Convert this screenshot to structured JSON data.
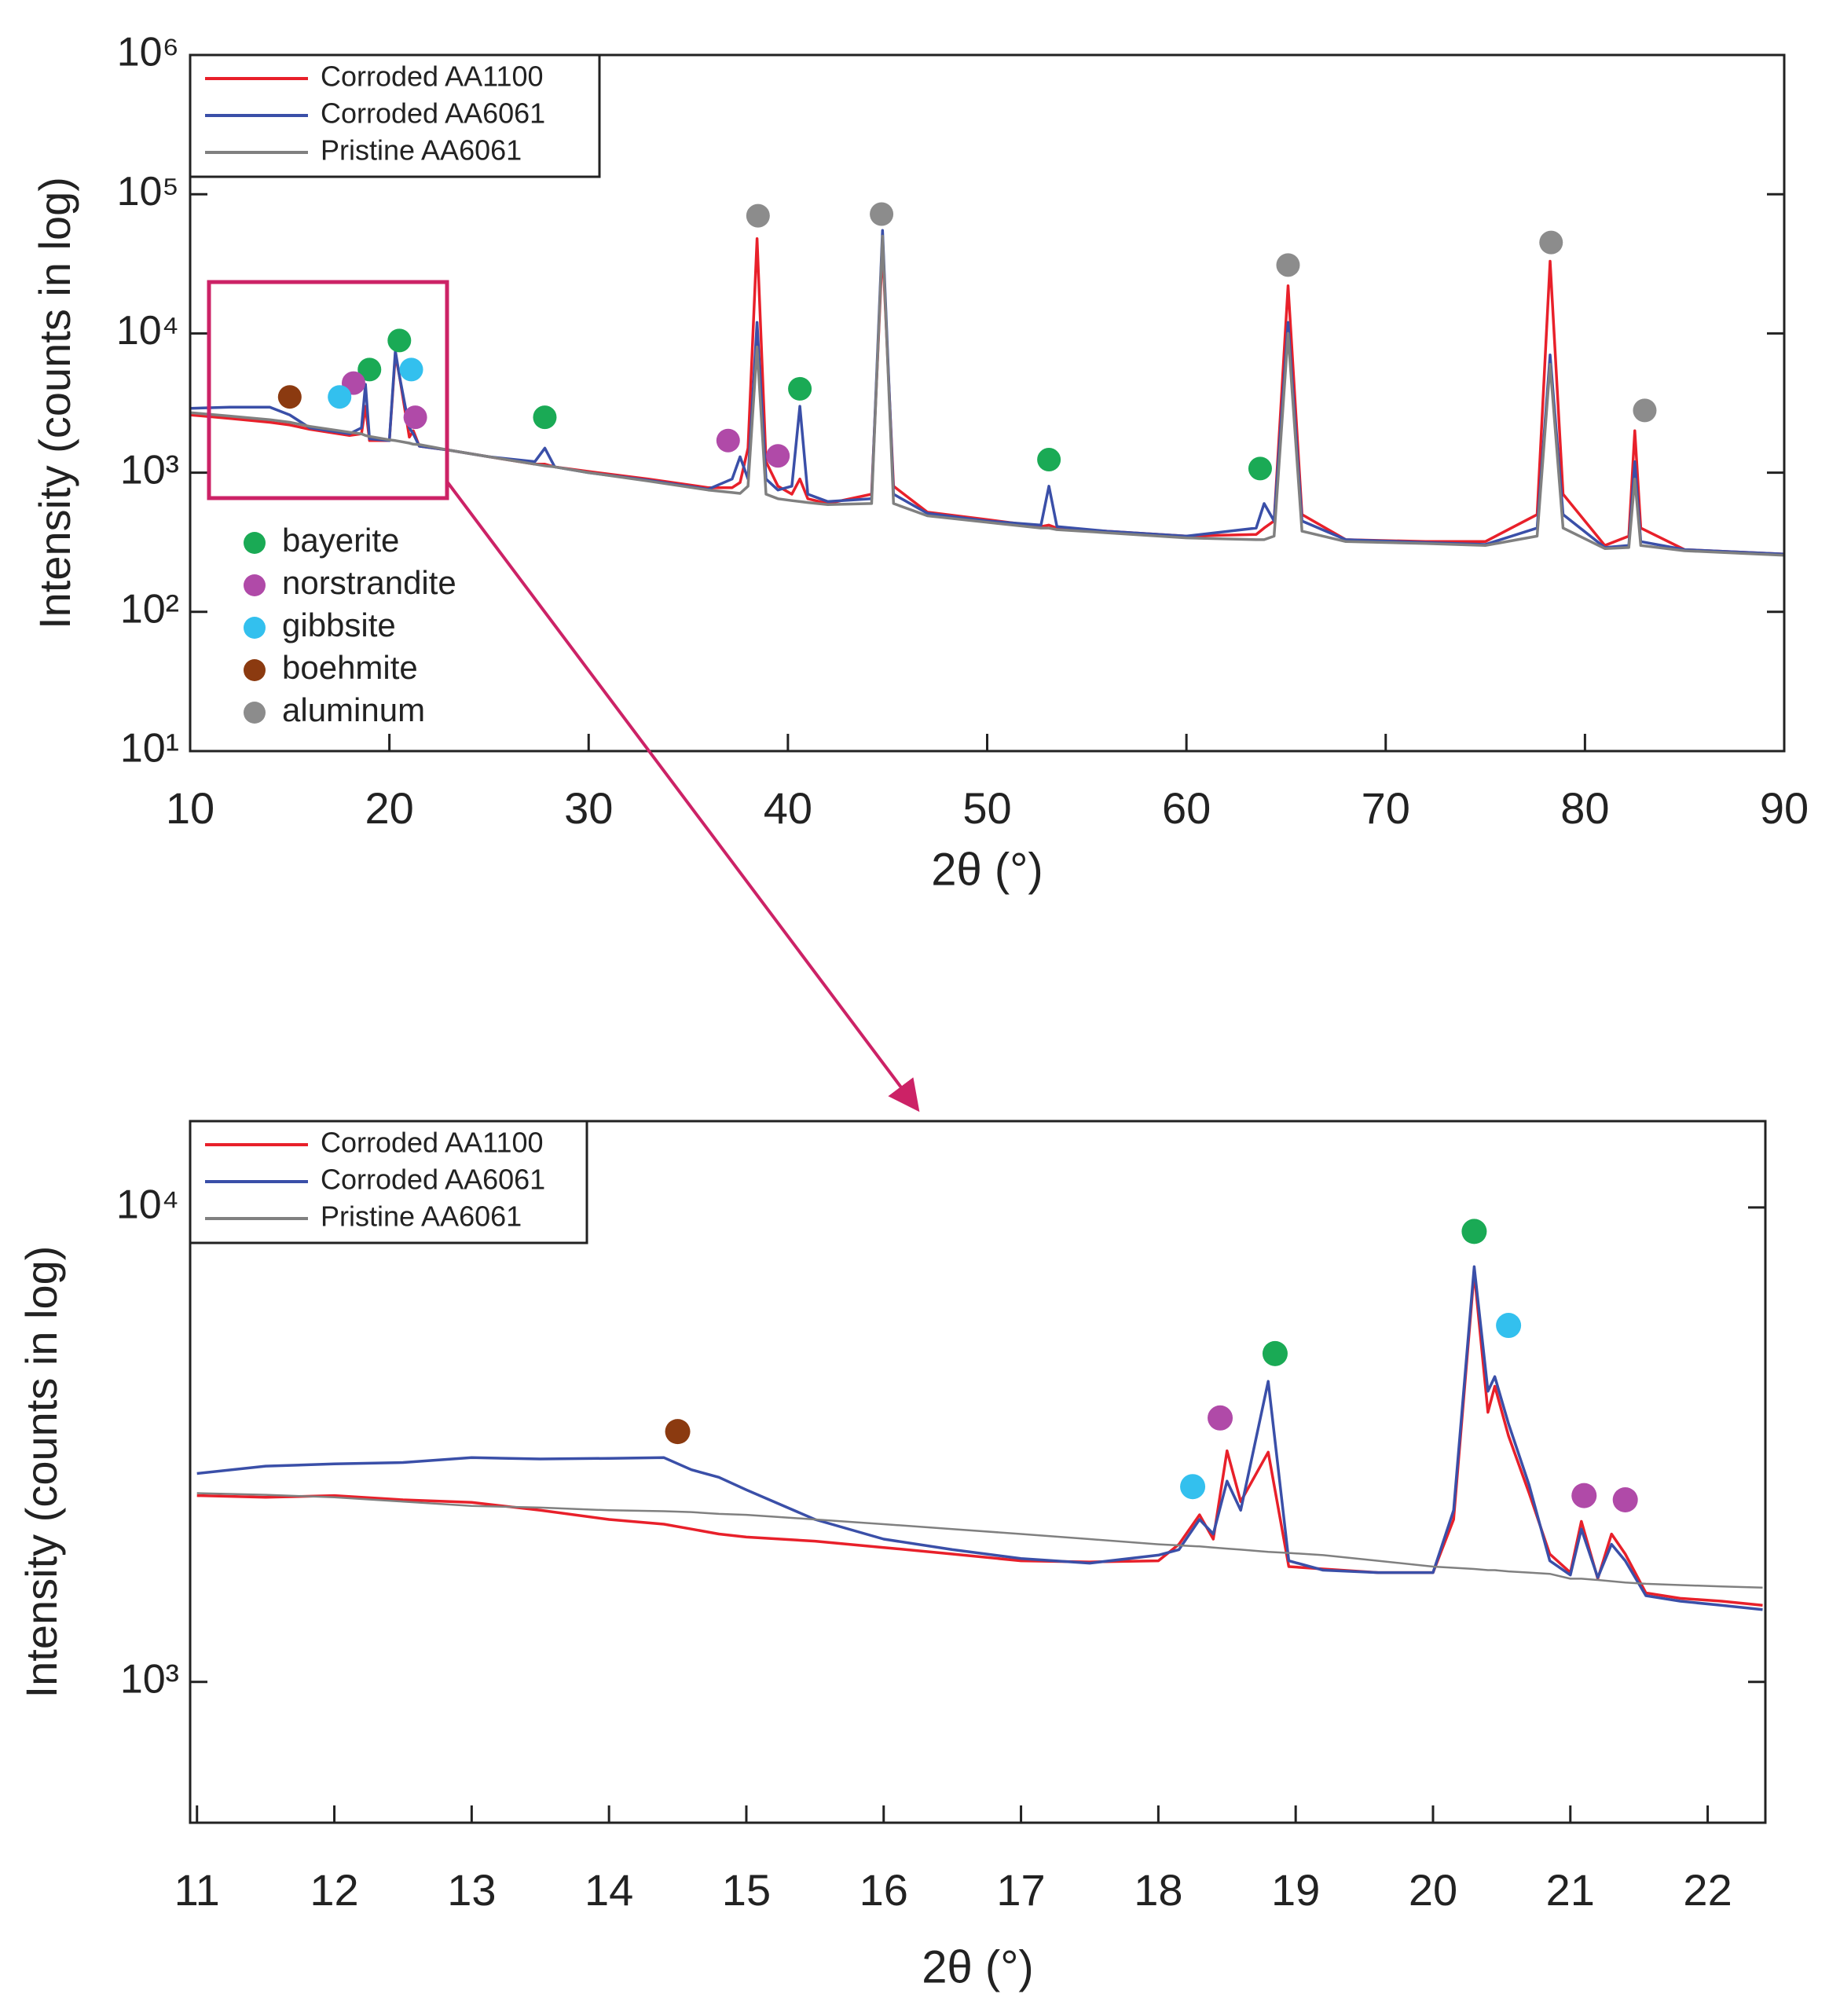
{
  "chart_data": [
    {
      "type": "line",
      "xlabel": "2θ (°)",
      "ylabel": "Intensity (counts in log)",
      "xlim": [
        10,
        90
      ],
      "xticks": [
        10,
        20,
        30,
        40,
        50,
        60,
        70,
        80,
        90
      ],
      "ylim": [
        10,
        1000000
      ],
      "log_y": true,
      "yticks": [
        {
          "value": 10,
          "label": "10¹"
        },
        {
          "value": 100,
          "label": "10²"
        },
        {
          "value": 1000,
          "label": "10³"
        },
        {
          "value": 10000,
          "label": "10⁴"
        },
        {
          "value": 100000,
          "label": "10⁵"
        },
        {
          "value": 1000000,
          "label": "10⁶"
        }
      ],
      "legend": "upper left",
      "x": [
        10,
        12,
        14,
        15,
        16,
        18,
        18.6,
        18.8,
        19,
        20,
        20.3,
        20.5,
        21,
        21.2,
        21.5,
        23,
        25,
        27.3,
        27.8,
        28.3,
        30,
        33,
        36,
        37.2,
        37.6,
        38.0,
        38.45,
        38.9,
        39.5,
        40.2,
        40.6,
        41.0,
        42,
        44.2,
        44.75,
        45.3,
        47,
        50,
        52.7,
        53.1,
        53.5,
        56,
        60,
        63.5,
        63.9,
        64.4,
        65.1,
        65.8,
        68,
        72,
        75,
        77.6,
        78.25,
        78.9,
        81,
        82.2,
        82.5,
        82.8,
        85,
        90
      ],
      "series": [
        {
          "name": "Corroded AA1100",
          "color": "#e8202a",
          "values": [
            2600,
            2450,
            2300,
            2200,
            2050,
            1850,
            1900,
            3000,
            1700,
            1700,
            7000,
            5000,
            1800,
            2000,
            1550,
            1450,
            1300,
            1150,
            1150,
            1100,
            1020,
            900,
            780,
            780,
            850,
            1500,
            48000,
            1200,
            800,
            700,
            900,
            650,
            600,
            700,
            42000,
            800,
            520,
            460,
            410,
            420,
            400,
            380,
            350,
            360,
            400,
            450,
            22000,
            500,
            330,
            320,
            320,
            500,
            33000,
            700,
            300,
            350,
            2000,
            400,
            280,
            260
          ]
        },
        {
          "name": "Corroded AA6061",
          "color": "#3a4fa8",
          "values": [
            2900,
            2950,
            2950,
            2600,
            2100,
            1900,
            2100,
            4300,
            1750,
            1700,
            7500,
            5000,
            2100,
            1900,
            1550,
            1450,
            1300,
            1200,
            1500,
            1100,
            1000,
            880,
            760,
            900,
            1300,
            900,
            12000,
            900,
            750,
            800,
            3000,
            700,
            620,
            650,
            55000,
            700,
            510,
            450,
            420,
            800,
            410,
            380,
            350,
            400,
            600,
            450,
            12000,
            450,
            330,
            315,
            305,
            400,
            7000,
            500,
            290,
            300,
            1200,
            320,
            280,
            260
          ]
        },
        {
          "name": "Pristine AA6061",
          "color": "#808080",
          "values": [
            2700,
            2550,
            2400,
            2300,
            2150,
            1950,
            1900,
            1850,
            1820,
            1720,
            1700,
            1680,
            1630,
            1600,
            1590,
            1450,
            1300,
            1150,
            1120,
            1100,
            1000,
            870,
            750,
            720,
            710,
            800,
            8000,
            700,
            650,
            630,
            620,
            610,
            590,
            600,
            50000,
            600,
            490,
            440,
            400,
            400,
            390,
            370,
            340,
            330,
            330,
            350,
            10000,
            380,
            320,
            310,
            300,
            350,
            6000,
            400,
            285,
            290,
            900,
            300,
            275,
            255
          ]
        }
      ],
      "phases": [
        {
          "name": "bayerite",
          "color": "#1aaa55",
          "x": [
            19.0,
            20.5,
            27.8,
            40.6,
            53.1,
            63.7
          ],
          "y": [
            5500,
            8900,
            2500,
            4000,
            1240,
            1070
          ]
        },
        {
          "name": "norstrandite",
          "color": "#b04aa8",
          "x": [
            18.2,
            21.3,
            37.0,
            39.5
          ],
          "y": [
            4400,
            2500,
            1700,
            1320
          ]
        },
        {
          "name": "gibbsite",
          "color": "#33c0ee",
          "x": [
            17.5,
            21.1
          ],
          "y": [
            3500,
            5500
          ]
        },
        {
          "name": "boehmite",
          "color": "#8b3a10",
          "x": [
            15.0
          ],
          "y": [
            3500
          ]
        },
        {
          "name": "aluminum",
          "color": "#8c8c8c",
          "x": [
            38.5,
            44.7,
            65.1,
            78.3,
            83.0
          ],
          "y": [
            70000,
            72000,
            31000,
            45000,
            2800
          ]
        }
      ]
    },
    {
      "type": "line",
      "xlabel": "2θ (°)",
      "ylabel": "Intensity (counts in log)",
      "xlim": [
        10.95,
        22.42
      ],
      "xticks": [
        11,
        12,
        13,
        14,
        15,
        16,
        17,
        18,
        19,
        20,
        21,
        22
      ],
      "ylim": [
        505,
        15200
      ],
      "log_y": true,
      "yticks": [
        {
          "value": 1000,
          "label": "10³"
        },
        {
          "value": 10000,
          "label": "10⁴"
        }
      ],
      "legend": "upper left",
      "x": [
        11,
        11.5,
        12,
        12.5,
        13,
        13.5,
        14,
        14.4,
        14.6,
        14.8,
        15,
        15.5,
        16,
        16.5,
        17,
        17.5,
        18,
        18.15,
        18.3,
        18.4,
        18.5,
        18.6,
        18.8,
        18.95,
        19.2,
        19.6,
        20,
        20.15,
        20.3,
        20.4,
        20.45,
        20.55,
        20.7,
        20.85,
        21,
        21.08,
        21.2,
        21.3,
        21.4,
        21.55,
        21.8,
        22.1,
        22.4
      ],
      "series": [
        {
          "name": "Corroded AA1100",
          "color": "#e8202a",
          "values": [
            2470,
            2450,
            2470,
            2420,
            2390,
            2300,
            2200,
            2150,
            2100,
            2050,
            2020,
            1980,
            1920,
            1860,
            1800,
            1790,
            1800,
            1950,
            2250,
            2000,
            3070,
            2400,
            3050,
            1750,
            1730,
            1700,
            1700,
            2200,
            7300,
            3700,
            4200,
            3300,
            2500,
            1860,
            1700,
            2180,
            1650,
            2050,
            1860,
            1540,
            1500,
            1480,
            1450
          ]
        },
        {
          "name": "Corroded AA6061",
          "color": "#3a4fa8",
          "values": [
            2750,
            2850,
            2880,
            2900,
            2970,
            2950,
            2960,
            2970,
            2800,
            2700,
            2540,
            2200,
            2000,
            1900,
            1820,
            1780,
            1850,
            1900,
            2200,
            2050,
            2650,
            2300,
            4300,
            1800,
            1720,
            1700,
            1700,
            2300,
            7500,
            4100,
            4400,
            3500,
            2600,
            1800,
            1680,
            2100,
            1660,
            1950,
            1800,
            1520,
            1480,
            1450,
            1420
          ]
        },
        {
          "name": "Pristine AA6061",
          "color": "#808080",
          "values": [
            2500,
            2480,
            2450,
            2400,
            2350,
            2330,
            2300,
            2290,
            2280,
            2260,
            2250,
            2200,
            2150,
            2100,
            2050,
            2000,
            1950,
            1940,
            1930,
            1920,
            1910,
            1900,
            1880,
            1870,
            1850,
            1800,
            1750,
            1740,
            1730,
            1720,
            1720,
            1710,
            1700,
            1690,
            1650,
            1650,
            1640,
            1630,
            1620,
            1610,
            1600,
            1590,
            1580
          ]
        }
      ],
      "phases": [
        {
          "color": "#1aaa55",
          "x": [
            18.85,
            20.3
          ],
          "y": [
            4920,
            8900
          ]
        },
        {
          "color": "#b04aa8",
          "x": [
            18.45,
            21.1,
            21.4
          ],
          "y": [
            3600,
            2470,
            2420
          ]
        },
        {
          "color": "#33c0ee",
          "x": [
            18.25,
            20.55
          ],
          "y": [
            2580,
            5640
          ]
        },
        {
          "color": "#8b3a10",
          "x": [
            14.5
          ],
          "y": [
            3370
          ]
        }
      ]
    }
  ]
}
